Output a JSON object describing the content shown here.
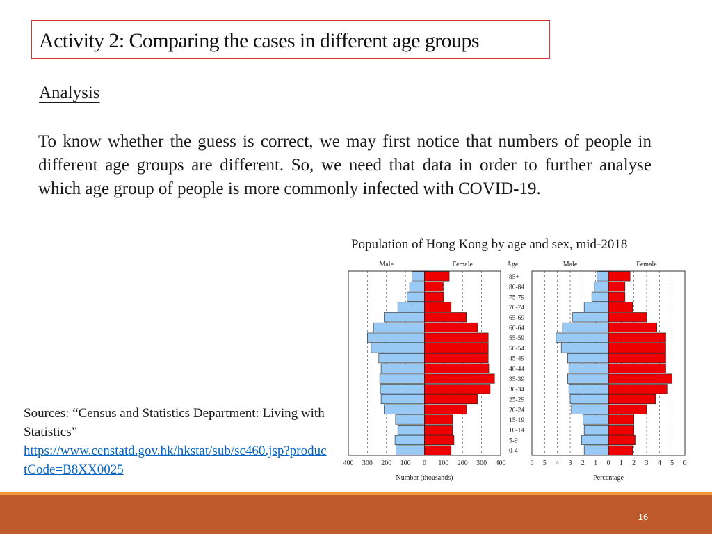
{
  "slide": {
    "title": "Activity 2: Comparing the cases in different age groups",
    "analysis_heading": "Analysis",
    "paragraph": "To know whether the guess is correct, we may first notice that numbers of people in different age groups are different. So, we need that data in order to further analyse which age group of people is more commonly infected with COVID-19.",
    "sources_label": "Sources: “Census and Statistics Department: Living with Statistics”",
    "sources_link": "https://www.censtatd.gov.hk/hkstat/sub/sc460.jsp?productCode=B8XX0025",
    "page_number": "16"
  },
  "colors": {
    "male": "#99c9f5",
    "female": "#ee0000",
    "title_border": "#d9342b",
    "footer_bar": "#bf5a2d",
    "footer_line": "#f29a3a"
  },
  "chart_data": {
    "title": "Population of Hong Kong by age and sex, mid-2018",
    "age_label": "Age",
    "age_groups": [
      "85+",
      "80-84",
      "75-79",
      "70-74",
      "65-69",
      "60-64",
      "55-59",
      "50-54",
      "45-49",
      "40-44",
      "35-39",
      "30-34",
      "25-29",
      "20-24",
      "15-19",
      "10-14",
      "5-9",
      "0-4"
    ],
    "charts": [
      {
        "type": "bar",
        "orientation": "horizontal-pyramid",
        "male_label": "Male",
        "female_label": "Female",
        "xlabel": "Number (thousands)",
        "xlim": [
          0,
          400
        ],
        "ticks": [
          400,
          300,
          200,
          100,
          0,
          100,
          200,
          300,
          400
        ],
        "series": [
          {
            "name": "Male",
            "values": [
              65,
              78,
              92,
              140,
              212,
              268,
              300,
              280,
              240,
              228,
              235,
              232,
              228,
              212,
              152,
              140,
              155,
              150
            ]
          },
          {
            "name": "Female",
            "values": [
              130,
              98,
              100,
              140,
              220,
              280,
              335,
              335,
              335,
              338,
              368,
              345,
              278,
              222,
              148,
              148,
              155,
              140
            ]
          }
        ]
      },
      {
        "type": "bar",
        "orientation": "horizontal-pyramid",
        "male_label": "Male",
        "female_label": "Female",
        "xlabel": "Percentage",
        "xlim": [
          0,
          6
        ],
        "ticks": [
          6,
          5,
          4,
          3,
          2,
          1,
          0,
          1,
          2,
          3,
          4,
          5,
          6
        ],
        "series": [
          {
            "name": "Male",
            "values": [
              0.9,
              1.1,
              1.3,
              1.9,
              2.8,
              3.6,
              4.1,
              3.7,
              3.2,
              3.1,
              3.2,
              3.1,
              3.0,
              2.9,
              2.0,
              1.9,
              2.1,
              1.9
            ]
          },
          {
            "name": "Female",
            "values": [
              1.7,
              1.3,
              1.3,
              1.9,
              3.0,
              3.8,
              4.5,
              4.5,
              4.5,
              4.5,
              5.0,
              4.6,
              3.7,
              3.0,
              2.0,
              2.0,
              2.1,
              1.9
            ]
          }
        ]
      }
    ]
  }
}
